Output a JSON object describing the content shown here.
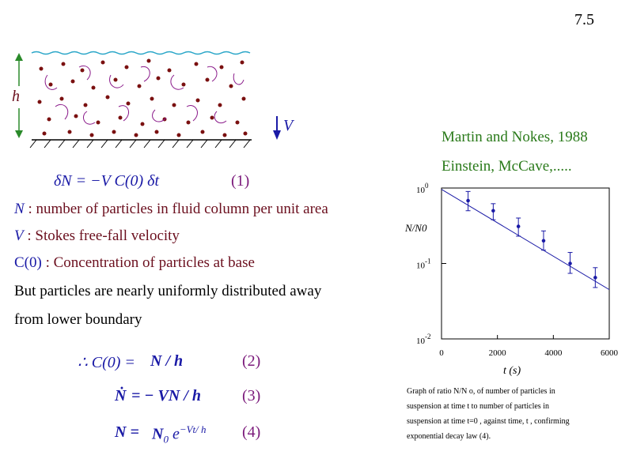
{
  "slide_number": "7.5",
  "diagram": {
    "h_label": "h",
    "v_label": "V"
  },
  "eq1": {
    "lhs": "δN",
    "rhs": "= −V C(0) δt",
    "num": "(1)"
  },
  "definitions": [
    {
      "sym": "N",
      "text": " : number of particles in fluid column per unit area"
    },
    {
      "sym": "V",
      "text": "  : Stokes free-fall velocity"
    },
    {
      "sym": "C(0)",
      "text": " : Concentration of particles at base"
    }
  ],
  "body_text": [
    "But particles are nearly uniformly distributed away",
    "from lower boundary"
  ],
  "eq2": {
    "expr": "∴ C(0) =",
    "rhs": "N / h",
    "num": "(2)"
  },
  "eq3": {
    "expr": "Ṅ",
    "rhs": "= − VN / h",
    "num": "(3)"
  },
  "eq4": {
    "expr": "N =",
    "rhs": "N",
    "sub": "0",
    "exp_base": "e",
    "exponent": "−Vt/ h",
    "num": "(4)"
  },
  "citations": [
    "Martin and Nokes, 1988",
    "Einstein, McCave,....."
  ],
  "chart_data": {
    "type": "scatter",
    "ylabel": "N/N0",
    "xlabel": "t  (s)",
    "xlim": [
      0,
      6000
    ],
    "ylim": [
      0.01,
      1
    ],
    "log_y": true,
    "x_ticks": [
      "0",
      "2000",
      "4000",
      "6000"
    ],
    "y_ticks": [
      {
        "base": "10",
        "exp": "0",
        "value": 1
      },
      {
        "base": "10",
        "exp": "-1",
        "value": 0.1
      },
      {
        "base": "10",
        "exp": "-2",
        "value": 0.01
      }
    ],
    "points": [
      {
        "x": 950,
        "y": 0.68,
        "err_low": 0.5,
        "err_high": 0.9
      },
      {
        "x": 1850,
        "y": 0.5,
        "err_low": 0.38,
        "err_high": 0.62
      },
      {
        "x": 2750,
        "y": 0.31,
        "err_low": 0.23,
        "err_high": 0.4
      },
      {
        "x": 3650,
        "y": 0.2,
        "err_low": 0.15,
        "err_high": 0.27
      },
      {
        "x": 4600,
        "y": 0.1,
        "err_low": 0.074,
        "err_high": 0.14
      },
      {
        "x": 5500,
        "y": 0.065,
        "err_low": 0.048,
        "err_high": 0.088
      }
    ],
    "fit_line": {
      "x": [
        0,
        6000
      ],
      "y": [
        0.96,
        0.045
      ]
    }
  },
  "caption": [
    "Graph of ratio        N/N  o, of number of particles in",
    "suspension at time           t  to number of particles in",
    "suspension at time        t=0 , against time,       t , confirming",
    "exponential decay law (4)."
  ]
}
